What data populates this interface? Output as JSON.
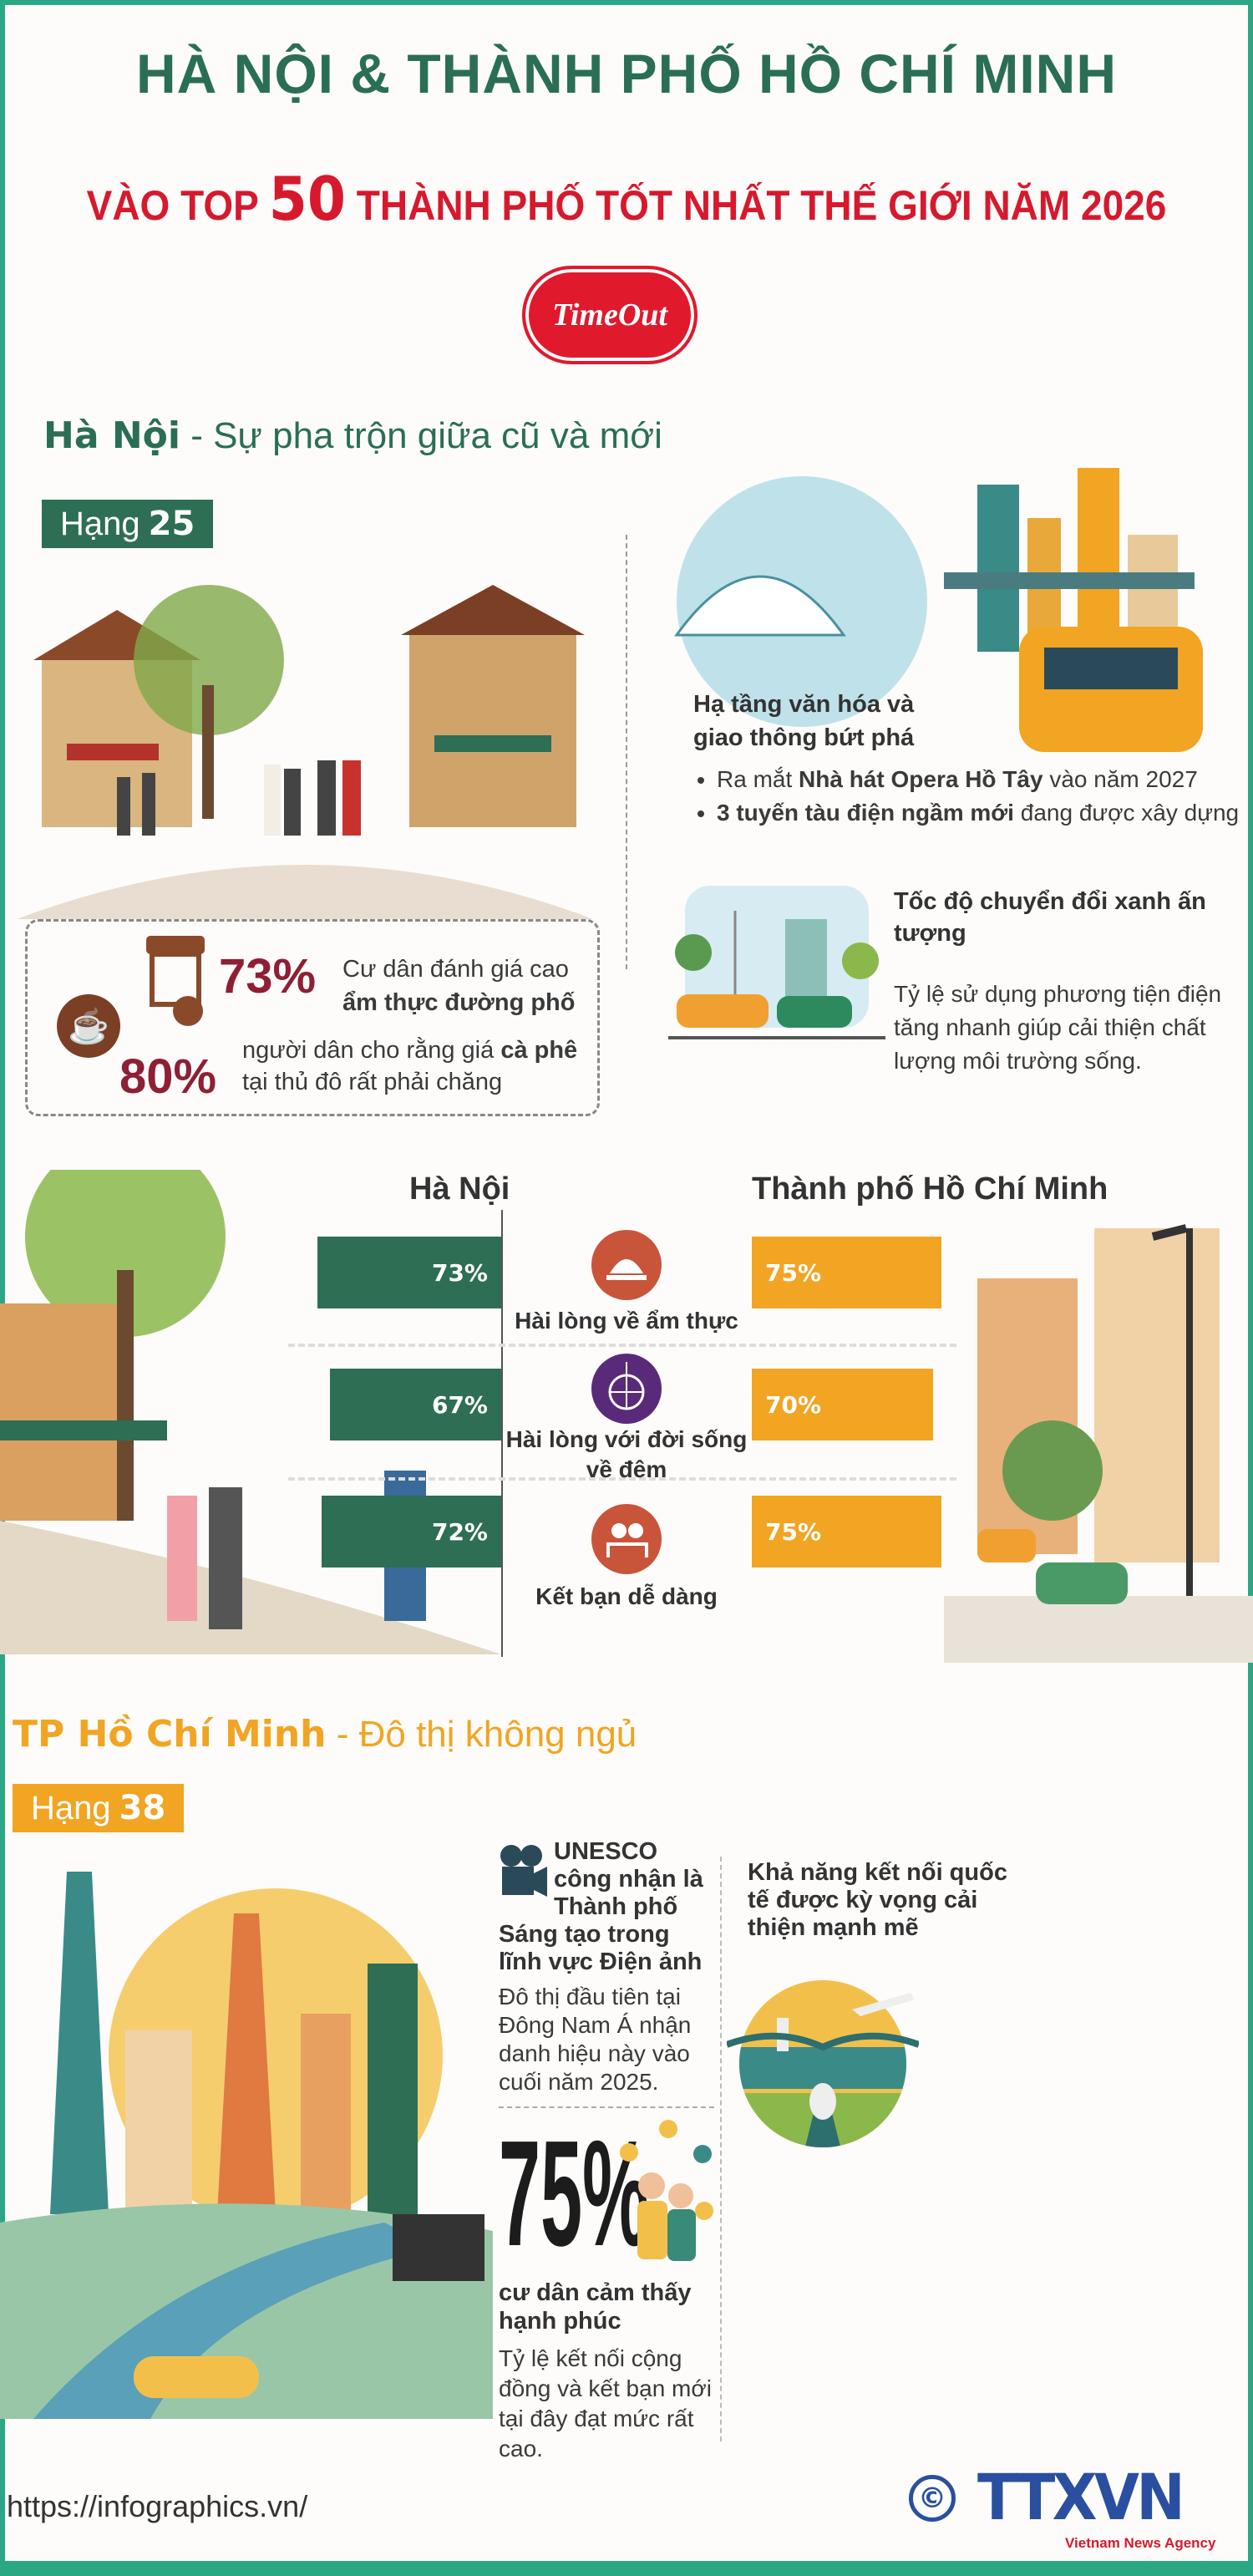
{
  "header": {
    "title_line1": "HÀ NỘI & THÀNH PHỐ HỒ CHÍ MINH",
    "title_line2_pre": "VÀO TOP",
    "title_line2_num": "50",
    "title_line2_post": "THÀNH PHỐ TỐT NHẤT THẾ GIỚI NĂM 2026",
    "logo_text": "TimeOut"
  },
  "hanoi": {
    "name": "Hà Nội",
    "subtitle": "- Sự pha trộn giữa cũ và mới",
    "rank_label": "Hạng",
    "rank": "25",
    "infra_title": "Hạ tầng văn hóa và giao thông bứt phá",
    "bullets": [
      {
        "pre": "Ra mắt ",
        "bold": "Nhà hát Opera Hồ Tây",
        "post": " vào năm 2027"
      },
      {
        "pre": "",
        "bold": "3 tuyến tàu điện ngầm mới",
        "post": " đang được xây dựng"
      }
    ],
    "green_title": "Tốc độ chuyển đổi xanh ấn tượng",
    "green_text": "Tỷ lệ sử dụng phương tiện điện tăng nhanh giúp cải thiện chất lượng môi trường sống.",
    "stat1": {
      "value": "73%",
      "text": "Cư dân đánh giá cao",
      "bold": "ẩm thực đường phố"
    },
    "stat2": {
      "value": "80%",
      "text": "người dân cho rằng giá ",
      "bold": "cà phê",
      "text2": "tại thủ đô rất phải chăng"
    }
  },
  "comparison": {
    "left_header": "Hà Nội",
    "right_header": "Thành phố Hồ Chí Minh",
    "colors": {
      "hanoi": "#2d6e55",
      "hcm": "#f2a423"
    },
    "rows": [
      {
        "label": "Hài lòng về ẩm thực",
        "hanoi": "73%",
        "hcm": "75%",
        "icon": "food-cloche-icon"
      },
      {
        "label": "Hài lòng với đời sống về đêm",
        "hanoi": "67%",
        "hcm": "70%",
        "icon": "disco-ball-icon"
      },
      {
        "label": "Kết bạn dễ dàng",
        "hanoi": "72%",
        "hcm": "75%",
        "icon": "friends-icon"
      }
    ]
  },
  "hcm": {
    "name": "TP Hồ Chí Minh",
    "subtitle": "- Đô thị không ngủ",
    "rank_label": "Hạng",
    "rank": "38",
    "unesco_title": "UNESCO công nhận là Thành phố Sáng tạo trong lĩnh vực Điện ảnh",
    "unesco_text": "Đô thị đầu tiên tại Đông Nam Á nhận danh hiệu này vào cuối năm 2025.",
    "connect_title": "Khả năng kết nối quốc tế được kỳ vọng cải thiện mạnh mẽ",
    "happy_value": "75%",
    "happy_label": "cư dân cảm thấy hạnh phúc",
    "happy_text": "Tỷ lệ kết nối cộng đồng và kết bạn mới tại đây đạt mức rất cao."
  },
  "footer": {
    "url": "https://infographics.vn/",
    "copyright": "©",
    "agency_logo": "TTXVN",
    "agency_sub": "Vietnam News Agency"
  }
}
